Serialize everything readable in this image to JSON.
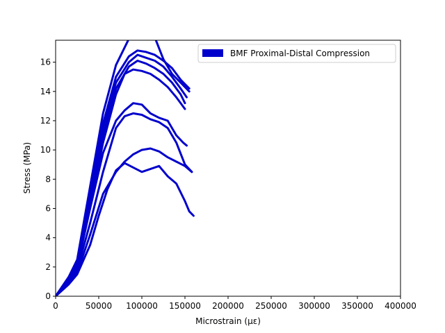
{
  "chart_data": {
    "type": "line",
    "xlabel": "Microstrain (με)",
    "ylabel": "Stress (MPa)",
    "xlim": [
      0,
      400000
    ],
    "ylim": [
      0,
      17.5
    ],
    "xticks": [
      0,
      50000,
      100000,
      150000,
      200000,
      250000,
      300000,
      350000,
      400000
    ],
    "yticks": [
      0,
      2,
      4,
      6,
      8,
      10,
      12,
      14,
      16
    ],
    "grid": false,
    "legend_position": "top-right",
    "legend_entries": [
      "BMF Proximal-Distal Compression"
    ],
    "series_color": "#0000cc",
    "series": [
      {
        "x": [
          0,
          15000,
          25000,
          40000,
          55000,
          70000,
          85000,
          100000,
          115000,
          125000,
          135000,
          145000,
          155000
        ],
        "y": [
          0,
          1.3,
          2.5,
          7.5,
          12.5,
          15.8,
          17.6,
          17.9,
          17.7,
          16.2,
          15.2,
          14.6,
          14.0
        ]
      },
      {
        "x": [
          0,
          15000,
          25000,
          40000,
          55000,
          70000,
          85000,
          95000,
          105000,
          115000,
          125000,
          135000,
          145000,
          155000
        ],
        "y": [
          0,
          1.3,
          2.3,
          7.0,
          11.8,
          15.0,
          16.4,
          16.8,
          16.7,
          16.5,
          16.1,
          15.6,
          14.8,
          14.2
        ]
      },
      {
        "x": [
          0,
          15000,
          25000,
          40000,
          55000,
          70000,
          85000,
          95000,
          105000,
          115000,
          125000,
          135000,
          145000,
          152000
        ],
        "y": [
          0,
          1.2,
          2.2,
          6.8,
          11.5,
          14.6,
          16.0,
          16.5,
          16.3,
          16.1,
          15.7,
          15.0,
          14.2,
          13.6
        ]
      },
      {
        "x": [
          0,
          15000,
          25000,
          40000,
          55000,
          70000,
          85000,
          95000,
          105000,
          115000,
          125000,
          135000,
          145000,
          150000
        ],
        "y": [
          0,
          1.2,
          2.1,
          6.5,
          11.0,
          14.2,
          15.7,
          16.1,
          15.9,
          15.6,
          15.2,
          14.6,
          13.8,
          13.2
        ]
      },
      {
        "x": [
          0,
          15000,
          25000,
          40000,
          55000,
          70000,
          80000,
          90000,
          100000,
          110000,
          120000,
          130000,
          140000,
          150000
        ],
        "y": [
          0,
          1.1,
          2.0,
          6.2,
          10.5,
          13.8,
          15.2,
          15.5,
          15.4,
          15.2,
          14.8,
          14.3,
          13.6,
          12.8
        ]
      },
      {
        "x": [
          0,
          15000,
          25000,
          40000,
          55000,
          70000,
          80000,
          90000,
          100000,
          110000,
          120000,
          130000,
          140000,
          148000,
          152000
        ],
        "y": [
          0,
          1.1,
          2.0,
          6.0,
          9.8,
          12.0,
          12.7,
          13.2,
          13.1,
          12.5,
          12.2,
          12.0,
          11.0,
          10.5,
          10.3
        ]
      },
      {
        "x": [
          0,
          15000,
          25000,
          40000,
          55000,
          70000,
          80000,
          90000,
          100000,
          110000,
          120000,
          130000,
          140000,
          150000,
          158000
        ],
        "y": [
          0,
          1.0,
          1.8,
          5.0,
          8.5,
          11.5,
          12.3,
          12.5,
          12.4,
          12.1,
          11.9,
          11.5,
          10.5,
          9.0,
          8.5
        ]
      },
      {
        "x": [
          0,
          15000,
          25000,
          40000,
          55000,
          70000,
          80000,
          90000,
          100000,
          110000,
          120000,
          130000,
          140000,
          150000,
          158000
        ],
        "y": [
          0,
          0.9,
          1.6,
          4.2,
          7.0,
          8.5,
          9.2,
          9.7,
          10.0,
          10.1,
          9.9,
          9.5,
          9.2,
          8.9,
          8.5
        ]
      },
      {
        "x": [
          0,
          15000,
          25000,
          40000,
          50000,
          60000,
          70000,
          80000,
          90000,
          100000,
          110000,
          120000,
          130000,
          140000,
          150000,
          155000,
          160000
        ],
        "y": [
          0,
          0.8,
          1.5,
          3.5,
          5.5,
          7.3,
          8.6,
          9.1,
          8.8,
          8.5,
          8.7,
          8.9,
          8.2,
          7.7,
          6.5,
          5.8,
          5.5
        ]
      }
    ]
  }
}
